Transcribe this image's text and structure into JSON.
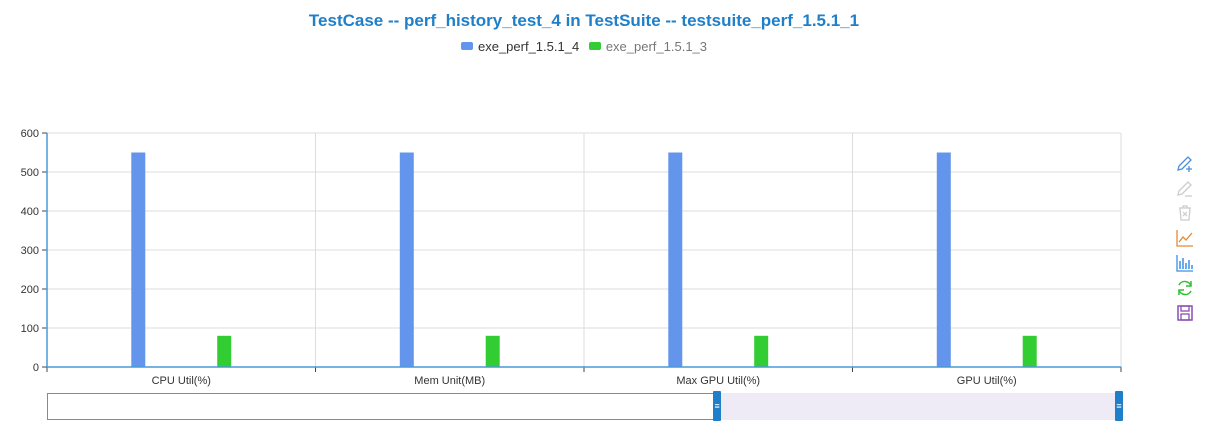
{
  "chart_data": {
    "type": "bar",
    "title": "TestCase -- perf_history_test_4 in TestSuite -- testsuite_perf_1.5.1_1",
    "categories": [
      "CPU Util(%)",
      "Mem Unit(MB)",
      "Max GPU Util(%)",
      "GPU Util(%)"
    ],
    "series": [
      {
        "name": "exe_perf_1.5.1_4",
        "color": "#6495ed",
        "values": [
          550,
          550,
          550,
          550
        ]
      },
      {
        "name": "exe_perf_1.5.1_3",
        "color": "#32cd32",
        "values": [
          80,
          80,
          80,
          80
        ]
      }
    ],
    "yticks": [
      "0",
      "100",
      "200",
      "300",
      "400",
      "500",
      "600"
    ],
    "ylim": [
      0,
      600
    ],
    "grid": true,
    "legend_position": "top-center"
  },
  "toolbox": [
    {
      "name": "data-zoom",
      "icon": "pencil-plus-icon",
      "color": "#4a90d9"
    },
    {
      "name": "data-zoom-reset",
      "icon": "pencil-icon",
      "color": "#cccccc"
    },
    {
      "name": "clear",
      "icon": "trash-icon",
      "color": "#cccccc"
    },
    {
      "name": "line",
      "icon": "line-chart-icon",
      "color": "#e08a3c"
    },
    {
      "name": "bar",
      "icon": "bar-chart-icon",
      "color": "#3a8ee6"
    },
    {
      "name": "restore",
      "icon": "refresh-icon",
      "color": "#2ec12e"
    },
    {
      "name": "save",
      "icon": "save-icon",
      "color": "#8a4fb5"
    }
  ],
  "zoom": {
    "start": 0,
    "end": 62.4
  }
}
